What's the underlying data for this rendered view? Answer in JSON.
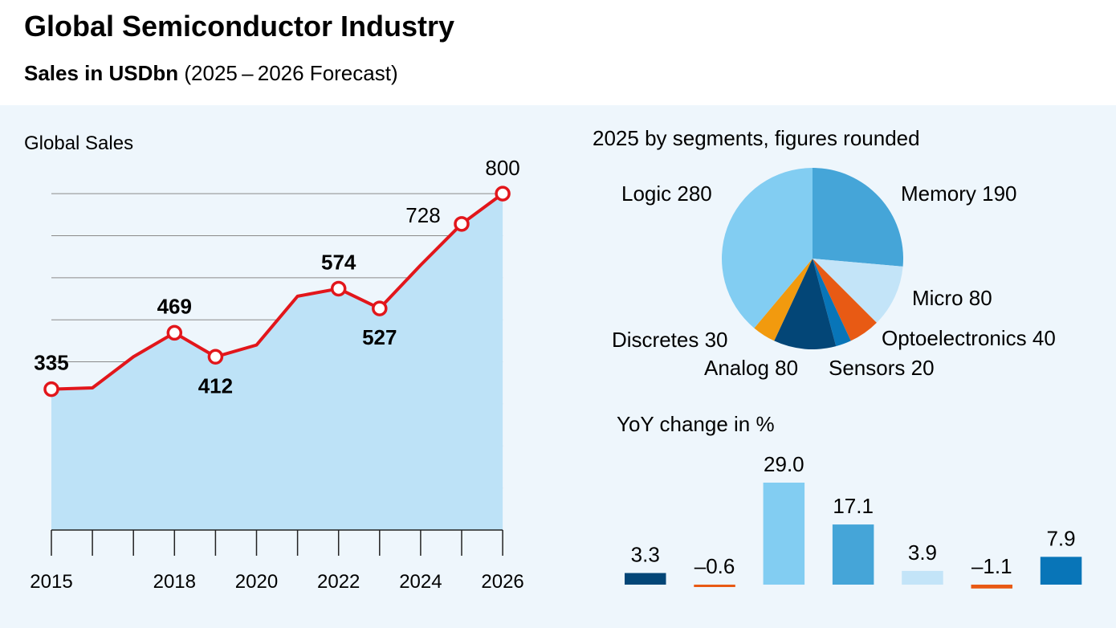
{
  "title": "Global Semiconductor Industry",
  "subtitle_bold": "Sales in USDbn",
  "subtitle_rest": " (2025 – 2026 Forecast)",
  "chart_data": [
    {
      "type": "area",
      "title": "Global Sales",
      "x": [
        2015,
        2016,
        2017,
        2018,
        2019,
        2020,
        2021,
        2022,
        2023,
        2024,
        2025,
        2026
      ],
      "y": [
        335,
        338,
        412,
        469,
        412,
        440,
        556,
        574,
        527,
        630,
        728,
        800
      ],
      "labeled_points": [
        {
          "x": 2015,
          "label": "335",
          "bold": true
        },
        {
          "x": 2018,
          "label": "469",
          "bold": true
        },
        {
          "x": 2019,
          "label": "412",
          "bold": true
        },
        {
          "x": 2022,
          "label": "574",
          "bold": true
        },
        {
          "x": 2023,
          "label": "527",
          "bold": true
        },
        {
          "x": 2025,
          "label": "728",
          "bold": false
        },
        {
          "x": 2026,
          "label": "800",
          "bold": false
        }
      ],
      "x_tick_labels": [
        "2015",
        "2018",
        "2020",
        "2022",
        "2024",
        "2026"
      ],
      "ylim": [
        0,
        800
      ],
      "grid": true,
      "colors": {
        "line": "#e2161b",
        "fill": "#bde2f7",
        "grid": "#8a8a8a"
      }
    },
    {
      "type": "pie",
      "title": "2025 by segments, figures rounded",
      "slices": [
        {
          "name": "Memory",
          "label": "Memory 190",
          "value": 190,
          "color": "#45a5d8"
        },
        {
          "name": "Micro",
          "label": "Micro 80",
          "value": 80,
          "color": "#c3e4f8"
        },
        {
          "name": "Optoelectronics",
          "label": "Optoelectronics 40",
          "value": 40,
          "color": "#e85a14"
        },
        {
          "name": "Sensors",
          "label": "Sensors 20",
          "value": 20,
          "color": "#0875b8"
        },
        {
          "name": "Analog",
          "label": "Analog 80",
          "value": 80,
          "color": "#034677"
        },
        {
          "name": "Discretes",
          "label": "Discretes 30",
          "value": 30,
          "color": "#f29a0e"
        },
        {
          "name": "Logic",
          "label": "Logic 280",
          "value": 280,
          "color": "#82cdf2"
        }
      ]
    },
    {
      "type": "bar",
      "title": "YoY change in %",
      "values": [
        3.3,
        -0.6,
        29.0,
        17.1,
        3.9,
        -1.1,
        7.9
      ],
      "labels": [
        "3.3",
        "–0.6",
        "29.0",
        "17.1",
        "3.9",
        "–1.1",
        "7.9"
      ],
      "colors": [
        "#034677",
        "#e85a14",
        "#82cdf2",
        "#45a5d8",
        "#c3e4f8",
        "#e85a14",
        "#0875b8"
      ]
    }
  ]
}
